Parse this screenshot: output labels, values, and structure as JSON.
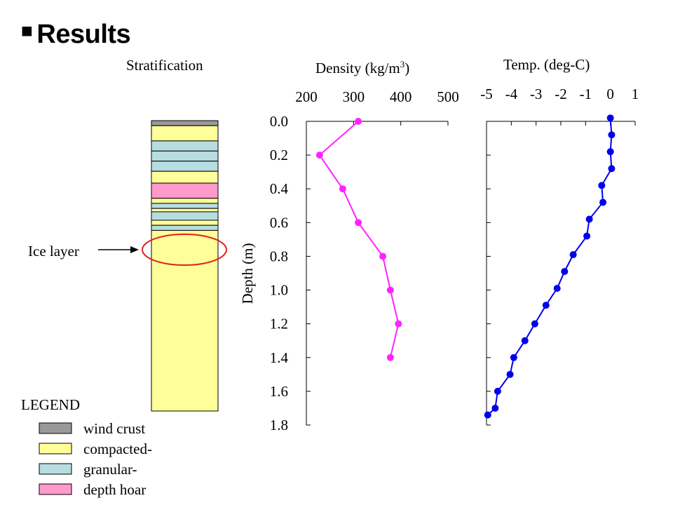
{
  "slide_title": "Results",
  "stratification_label": "Stratification",
  "ice_layer_label": "Ice layer",
  "legend": {
    "title": "LEGEND",
    "items": [
      {
        "label": "wind crust",
        "color": "#999999"
      },
      {
        "label": "compacted-",
        "color": "#ffff99"
      },
      {
        "label": "granular-",
        "color": "#b7dde0"
      },
      {
        "label": "depth hoar",
        "color": "#ff99cc"
      }
    ]
  },
  "stratification_layers": [
    {
      "top": 0.0,
      "bottom": 0.03,
      "type": "wind crust"
    },
    {
      "top": 0.03,
      "bottom": 0.12,
      "type": "compacted-"
    },
    {
      "top": 0.12,
      "bottom": 0.18,
      "type": "granular-"
    },
    {
      "top": 0.18,
      "bottom": 0.24,
      "type": "granular-"
    },
    {
      "top": 0.24,
      "bottom": 0.3,
      "type": "granular-"
    },
    {
      "top": 0.3,
      "bottom": 0.37,
      "type": "compacted-"
    },
    {
      "top": 0.37,
      "bottom": 0.46,
      "type": "depth hoar"
    },
    {
      "top": 0.46,
      "bottom": 0.49,
      "type": "compacted-"
    },
    {
      "top": 0.49,
      "bottom": 0.52,
      "type": "granular-"
    },
    {
      "top": 0.52,
      "bottom": 0.54,
      "type": "compacted-"
    },
    {
      "top": 0.54,
      "bottom": 0.59,
      "type": "granular-"
    },
    {
      "top": 0.59,
      "bottom": 0.62,
      "type": "compacted-"
    },
    {
      "top": 0.62,
      "bottom": 0.65,
      "type": "granular-"
    },
    {
      "top": 0.65,
      "bottom": 1.72,
      "type": "compacted-"
    }
  ],
  "chart_data": [
    {
      "type": "line",
      "title": "Density  (kg/m3)",
      "xlabel": "Density  (kg/m3)",
      "ylabel": "Depth (m)",
      "xlim": [
        200,
        500
      ],
      "ylim": [
        0.0,
        1.8
      ],
      "x_ticks": [
        "200",
        "300",
        "400",
        "500"
      ],
      "y_ticks": [
        "0.0",
        "0.2",
        "0.4",
        "0.6",
        "0.8",
        "1.0",
        "1.2",
        "1.4",
        "1.6",
        "1.8"
      ],
      "color": "#ff22ff",
      "points": [
        {
          "x": 310,
          "y": 0.0
        },
        {
          "x": 228,
          "y": 0.2
        },
        {
          "x": 277,
          "y": 0.4
        },
        {
          "x": 310,
          "y": 0.6
        },
        {
          "x": 362,
          "y": 0.8
        },
        {
          "x": 378,
          "y": 1.0
        },
        {
          "x": 395,
          "y": 1.2
        },
        {
          "x": 378,
          "y": 1.4
        }
      ]
    },
    {
      "type": "line",
      "title": "Temp.  (deg-C)",
      "xlabel": "Temp.  (deg-C)",
      "ylabel": "Depth (m)",
      "xlim": [
        -5,
        1
      ],
      "ylim": [
        0.0,
        1.8
      ],
      "x_ticks": [
        "-5",
        "-4",
        "-3",
        "-2",
        "-1",
        "0",
        "1"
      ],
      "color": "#0000ee",
      "points": [
        {
          "x": 0.0,
          "y": -0.02
        },
        {
          "x": 0.05,
          "y": 0.08
        },
        {
          "x": 0.0,
          "y": 0.18
        },
        {
          "x": 0.05,
          "y": 0.28
        },
        {
          "x": -0.35,
          "y": 0.38
        },
        {
          "x": -0.3,
          "y": 0.48
        },
        {
          "x": -0.85,
          "y": 0.58
        },
        {
          "x": -0.95,
          "y": 0.68
        },
        {
          "x": -1.5,
          "y": 0.79
        },
        {
          "x": -1.85,
          "y": 0.89
        },
        {
          "x": -2.15,
          "y": 0.99
        },
        {
          "x": -2.6,
          "y": 1.09
        },
        {
          "x": -3.05,
          "y": 1.2
        },
        {
          "x": -3.45,
          "y": 1.3
        },
        {
          "x": -3.9,
          "y": 1.4
        },
        {
          "x": -4.05,
          "y": 1.5
        },
        {
          "x": -4.55,
          "y": 1.6
        },
        {
          "x": -4.65,
          "y": 1.7
        },
        {
          "x": -4.95,
          "y": 1.74
        }
      ]
    }
  ]
}
